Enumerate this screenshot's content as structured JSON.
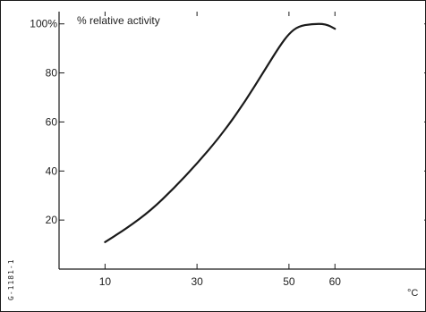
{
  "chart_data": {
    "type": "line",
    "title": "% relative activity",
    "xlabel": "",
    "ylabel": "",
    "x_unit_label": "°C",
    "xlim": [
      0,
      80
    ],
    "ylim": [
      0,
      105
    ],
    "x_ticks": [
      10,
      30,
      50,
      60
    ],
    "x_tick_labels": [
      "10",
      "30",
      "50",
      "60"
    ],
    "y_ticks": [
      20,
      40,
      60,
      80,
      100
    ],
    "y_tick_labels": [
      "20",
      "40",
      "60",
      "80",
      "100%"
    ],
    "grid": false,
    "legend": "none",
    "series": [
      {
        "x": [
          10,
          15,
          20,
          25,
          30,
          35,
          40,
          45,
          48,
          50,
          52,
          55,
          58,
          60
        ],
        "y": [
          11,
          17,
          24,
          33,
          43,
          54,
          67,
          82,
          91,
          96,
          99,
          100,
          100,
          98
        ],
        "color": "#1a1a1a"
      }
    ]
  },
  "side_label": "G-1181-1"
}
